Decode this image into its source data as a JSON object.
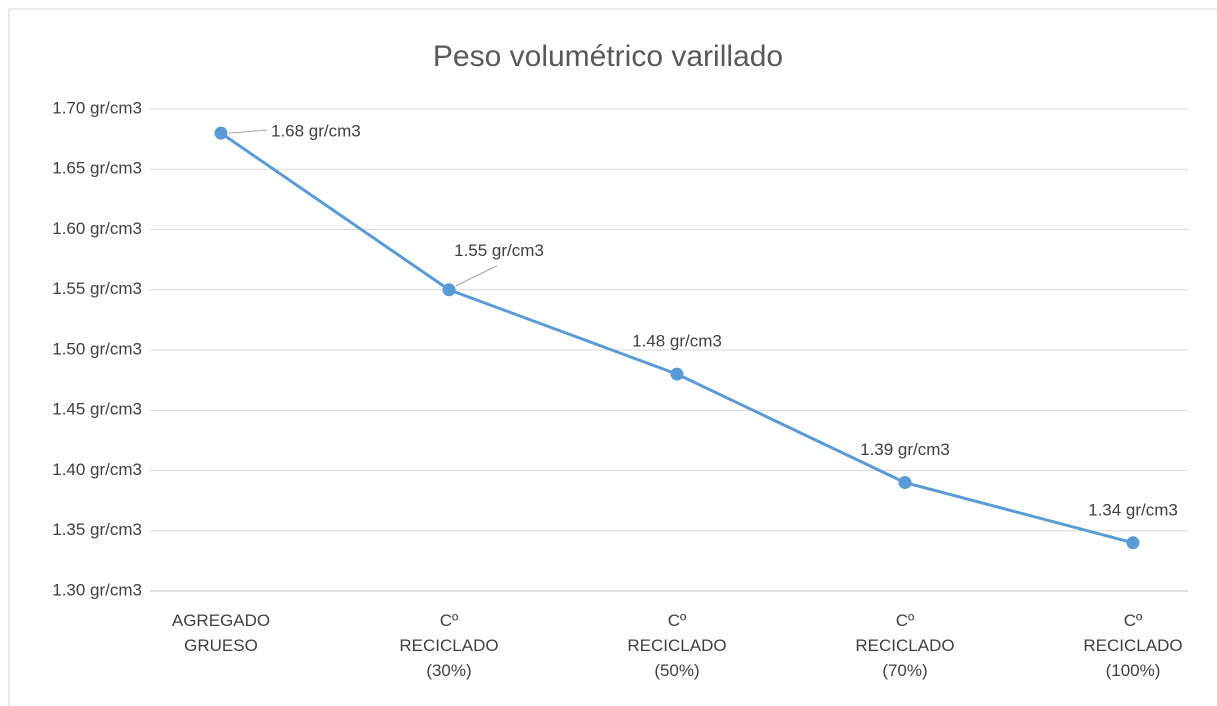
{
  "chart_data": {
    "type": "line",
    "title": "Peso volumétrico varillado",
    "categories": [
      "AGREGADO GRUESO",
      "Cº RECICLADO (30%)",
      "Cº RECICLADO (50%)",
      "Cº RECICLADO (70%)",
      "Cº RECICLADO (100%)"
    ],
    "series": [
      {
        "name": "Peso volumétrico varillado",
        "color": "#5b9bd5",
        "values": [
          1.68,
          1.55,
          1.48,
          1.39,
          1.34
        ],
        "value_labels": [
          "1.68 gr/cm3",
          "1.55 gr/cm3",
          "1.48 gr/cm3",
          "1.39 gr/cm3",
          "1.34 gr/cm3"
        ]
      }
    ],
    "ylim": [
      1.3,
      1.7
    ],
    "yticks": [
      {
        "value": 1.3,
        "label": "1.30 gr/cm3"
      },
      {
        "value": 1.35,
        "label": "1.35 gr/cm3"
      },
      {
        "value": 1.4,
        "label": "1.40 gr/cm3"
      },
      {
        "value": 1.45,
        "label": "1.45 gr/cm3"
      },
      {
        "value": 1.5,
        "label": "1.50 gr/cm3"
      },
      {
        "value": 1.55,
        "label": "1.55 gr/cm3"
      },
      {
        "value": 1.6,
        "label": "1.60 gr/cm3"
      },
      {
        "value": 1.65,
        "label": "1.65 gr/cm3"
      },
      {
        "value": 1.7,
        "label": "1.70 gr/cm3"
      }
    ],
    "grid": true
  }
}
